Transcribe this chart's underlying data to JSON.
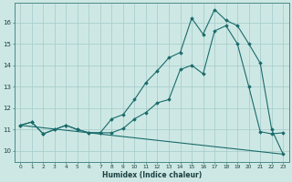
{
  "title": "",
  "xlabel": "Humidex (Indice chaleur)",
  "ylabel": "",
  "bg_color": "#cde8e4",
  "grid_color": "#aacece",
  "line_color": "#1a6b6b",
  "xlim": [
    -0.5,
    23.5
  ],
  "ylim": [
    9.5,
    16.9
  ],
  "yticks": [
    10,
    11,
    12,
    13,
    14,
    15,
    16
  ],
  "xticks": [
    0,
    1,
    2,
    3,
    4,
    5,
    6,
    7,
    8,
    9,
    10,
    11,
    12,
    13,
    14,
    15,
    16,
    17,
    18,
    19,
    20,
    21,
    22,
    23
  ],
  "series1_x": [
    0,
    1,
    2,
    3,
    4,
    5,
    6,
    7,
    8,
    9,
    10,
    11,
    12,
    13,
    14,
    15,
    16,
    17,
    18,
    19,
    20,
    21,
    22,
    23
  ],
  "series1_y": [
    11.2,
    11.35,
    10.8,
    11.0,
    11.2,
    11.0,
    10.85,
    10.85,
    10.85,
    11.05,
    11.5,
    11.8,
    12.25,
    12.4,
    13.8,
    14.0,
    13.6,
    15.6,
    15.85,
    15.0,
    13.0,
    10.9,
    10.8,
    10.85
  ],
  "series2_x": [
    0,
    1,
    2,
    3,
    4,
    5,
    6,
    7,
    8,
    9,
    10,
    11,
    12,
    13,
    14,
    15,
    16,
    17,
    18,
    19,
    20,
    21,
    22,
    23
  ],
  "series2_y": [
    11.2,
    11.35,
    10.8,
    11.0,
    11.2,
    11.0,
    10.85,
    10.85,
    11.5,
    11.7,
    12.4,
    13.2,
    13.75,
    14.35,
    14.6,
    16.2,
    15.45,
    16.6,
    16.1,
    15.85,
    15.0,
    14.1,
    11.0,
    9.85
  ],
  "series3_x": [
    0,
    23
  ],
  "series3_y": [
    11.2,
    9.85
  ]
}
